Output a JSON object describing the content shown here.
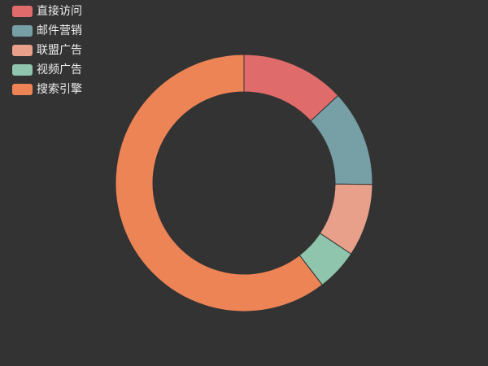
{
  "chart_data": {
    "type": "pie",
    "variant": "donut",
    "legend_position": "top-left",
    "colors": {
      "background": "#333333",
      "legend_text": "#eeeeee",
      "slice_border": "#333333"
    },
    "series": [
      {
        "data": [
          {
            "name": "直接访问",
            "value": 335,
            "color": "#e06b6b"
          },
          {
            "name": "邮件营销",
            "value": 310,
            "color": "#76a0a6"
          },
          {
            "name": "联盟广告",
            "value": 234,
            "color": "#e8a08a"
          },
          {
            "name": "视频广告",
            "value": 135,
            "color": "#8ec5ac"
          },
          {
            "name": "搜索引擎",
            "value": 1548,
            "color": "#ec8456"
          }
        ]
      }
    ]
  }
}
